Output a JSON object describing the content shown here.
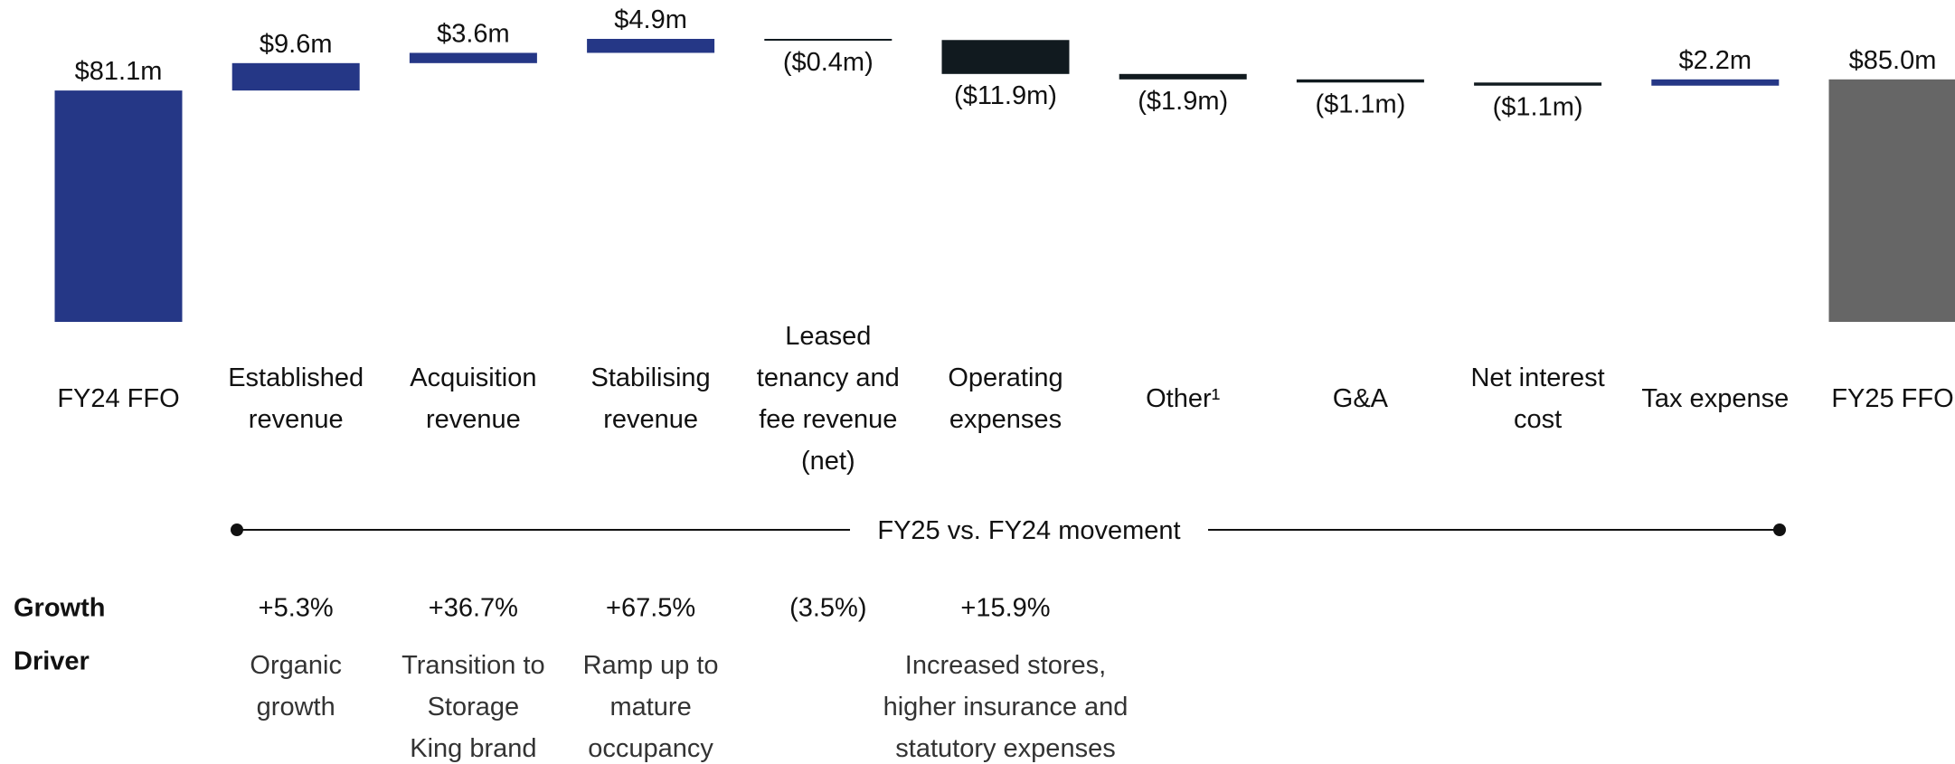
{
  "chart_data": {
    "type": "waterfall",
    "categories": [
      "FY24 FFO",
      "Established revenue",
      "Acquisition revenue",
      "Stabilising revenue",
      "Leased tenancy and fee revenue (net)",
      "Operating expenses",
      "Other¹",
      "G&A",
      "Net interest cost",
      "Tax expense",
      "FY25 FFO"
    ],
    "values": [
      81.1,
      9.6,
      3.6,
      4.9,
      -0.4,
      -11.9,
      -1.9,
      -1.1,
      -1.1,
      2.2,
      85.0
    ],
    "value_labels": [
      "$81.1m",
      "$9.6m",
      "$3.6m",
      "$4.9m",
      "($0.4m)",
      "($11.9m)",
      "($1.9m)",
      "($1.1m)",
      "($1.1m)",
      "$2.2m",
      "$85.0m"
    ],
    "is_total": [
      true,
      false,
      false,
      false,
      false,
      false,
      false,
      false,
      false,
      false,
      true
    ],
    "colors": [
      "#253786",
      "#253786",
      "#253786",
      "#253786",
      "#111a1f",
      "#111a1f",
      "#111a1f",
      "#111a1f",
      "#111a1f",
      "#253786",
      "#666666"
    ],
    "movement_label": "FY25 vs. FY24 movement"
  },
  "table": {
    "rows": [
      {
        "label": "Growth",
        "cells": [
          "+5.3%",
          "+36.7%",
          "+67.5%",
          "(3.5%)",
          "+15.9%"
        ]
      },
      {
        "label": "Driver",
        "cells": [
          "Organic growth",
          "Transition to Storage King brand",
          "Ramp up to mature occupancy",
          null,
          "Increased stores, higher insurance and statutory expenses"
        ]
      }
    ]
  }
}
